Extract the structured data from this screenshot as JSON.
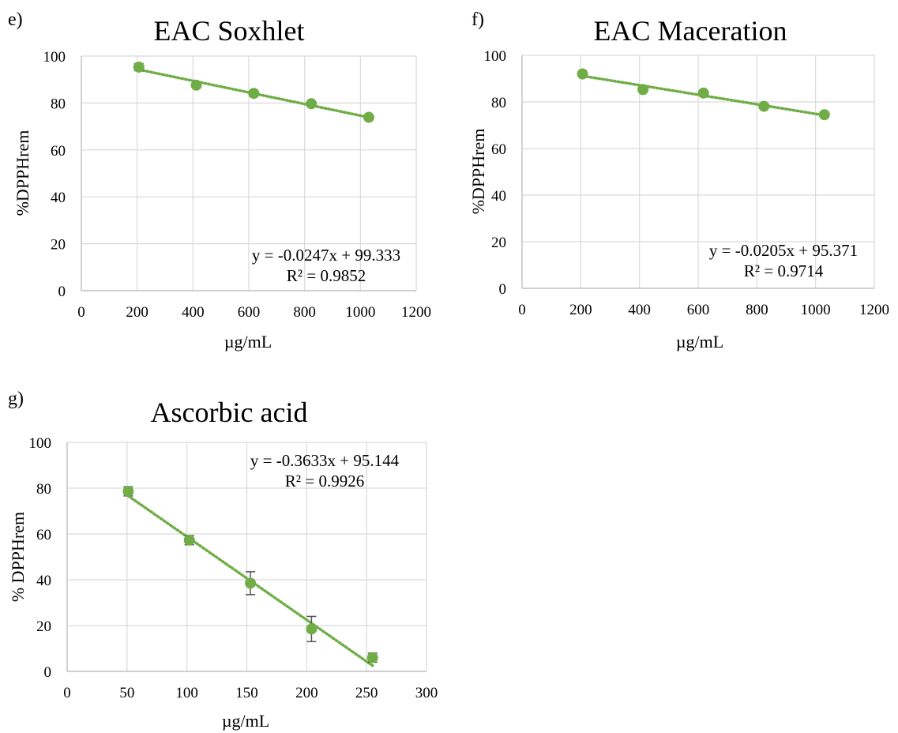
{
  "panels": [
    {
      "letter": "e)",
      "chart_data": {
        "type": "scatter",
        "title": "EAC Soxhlet",
        "xlabel": "µg/mL",
        "ylabel": "%DPPHrem",
        "xlim": [
          0,
          1200
        ],
        "ylim": [
          0,
          100
        ],
        "x_ticks": [
          0,
          200,
          400,
          600,
          800,
          1000,
          1200
        ],
        "y_ticks": [
          0,
          20,
          40,
          60,
          80,
          100
        ],
        "grid": "vertical and horizontal",
        "series": [
          {
            "color": "#70ad47",
            "marker": "circle",
            "points": [
              {
                "x": 206,
                "y": 95.3,
                "err": 1.5
              },
              {
                "x": 412,
                "y": 87.6,
                "err": 0.3
              },
              {
                "x": 618,
                "y": 84.1,
                "err": 0.3
              },
              {
                "x": 824,
                "y": 79.7,
                "err": 0.3
              },
              {
                "x": 1030,
                "y": 73.9,
                "err": 0.4
              }
            ]
          }
        ],
        "trendline": {
          "type": "linear",
          "slope": -0.0247,
          "intercept": 99.333,
          "style": "dotted",
          "color": "#70ad47"
        },
        "annotation": [
          "y = -0.0247x + 99.333",
          "R² = 0.9852"
        ]
      }
    },
    {
      "letter": "f)",
      "chart_data": {
        "type": "scatter",
        "title": "EAC Maceration",
        "xlabel": "µg/mL",
        "ylabel": "%DPPHrem",
        "xlim": [
          0,
          1200
        ],
        "ylim": [
          0,
          100
        ],
        "x_ticks": [
          0,
          200,
          400,
          600,
          800,
          1000,
          1200
        ],
        "y_ticks": [
          0,
          20,
          40,
          60,
          80,
          100
        ],
        "grid": "vertical and horizontal",
        "series": [
          {
            "color": "#70ad47",
            "marker": "circle",
            "points": [
              {
                "x": 206,
                "y": 92.0,
                "err": 0.3
              },
              {
                "x": 412,
                "y": 85.3,
                "err": 0.3
              },
              {
                "x": 618,
                "y": 83.8,
                "err": 0.3
              },
              {
                "x": 824,
                "y": 78.1,
                "err": 0.3
              },
              {
                "x": 1030,
                "y": 74.5,
                "err": 0.3
              }
            ]
          }
        ],
        "trendline": {
          "type": "linear",
          "slope": -0.0205,
          "intercept": 95.371,
          "style": "dotted",
          "color": "#70ad47"
        },
        "annotation": [
          "y = -0.0205x + 95.371",
          "R² = 0.9714"
        ]
      }
    },
    {
      "letter": "g)",
      "chart_data": {
        "type": "scatter",
        "title": "Ascorbic acid",
        "xlabel": "µg/mL",
        "ylabel": "% DPPHrem",
        "xlim": [
          0,
          300
        ],
        "ylim": [
          0,
          100
        ],
        "x_ticks": [
          0,
          50,
          100,
          150,
          200,
          250,
          300
        ],
        "y_ticks": [
          0,
          20,
          40,
          60,
          80,
          100
        ],
        "grid": "vertical and horizontal",
        "series": [
          {
            "color": "#70ad47",
            "marker": "circle",
            "points": [
              {
                "x": 51,
                "y": 78.6,
                "err": 2.0
              },
              {
                "x": 102,
                "y": 57.3,
                "err": 2.0
              },
              {
                "x": 153,
                "y": 38.5,
                "err": 5.0
              },
              {
                "x": 204,
                "y": 18.5,
                "err": 5.5
              },
              {
                "x": 255,
                "y": 6.0,
                "err": 2.0
              }
            ]
          }
        ],
        "trendline": {
          "type": "linear",
          "slope": -0.3633,
          "intercept": 95.144,
          "style": "dotted",
          "color": "#70ad47"
        },
        "annotation": [
          "y = -0.3633x + 95.144",
          "R² = 0.9926"
        ]
      }
    }
  ]
}
